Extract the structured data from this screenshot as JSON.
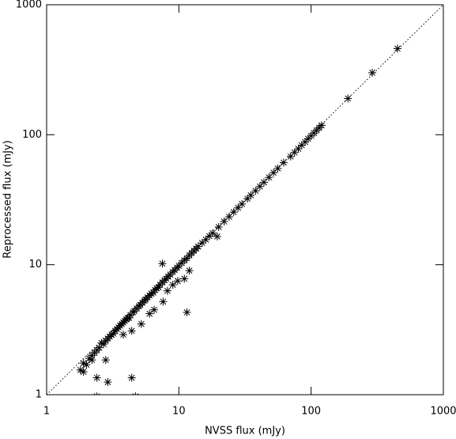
{
  "chart_data": {
    "type": "scatter",
    "xlabel": "NVSS flux (mJy)",
    "ylabel": "Reprocessed flux (mJy)",
    "xscale": "log",
    "yscale": "log",
    "diagonal": true,
    "color": "#000000",
    "xlim": [
      1,
      1000
    ],
    "ylim": [
      1,
      1000
    ],
    "xticks": [
      1,
      10,
      100,
      1000
    ],
    "yticks": [
      1,
      10,
      100,
      1000
    ],
    "x": [
      1.8,
      1.9,
      2.0,
      2.1,
      2.2,
      2.3,
      2.4,
      2.5,
      2.6,
      2.7,
      2.8,
      2.9,
      3.0,
      3.1,
      3.2,
      3.3,
      3.4,
      3.5,
      3.6,
      3.7,
      3.8,
      3.9,
      4.0,
      4.1,
      4.2,
      4.3,
      4.5,
      4.6,
      4.8,
      5.0,
      5.1,
      5.3,
      5.5,
      5.6,
      5.8,
      6.0,
      6.2,
      6.4,
      6.6,
      6.8,
      7.0,
      7.2,
      7.5,
      7.8,
      8.0,
      8.3,
      8.6,
      9.0,
      9.3,
      9.7,
      10,
      10.5,
      11,
      11.5,
      12,
      12.5,
      13,
      13.5,
      14,
      15,
      16,
      17,
      18,
      20,
      22,
      24,
      26,
      28,
      30,
      33,
      35,
      38,
      41,
      44,
      48,
      52,
      56,
      62,
      70,
      75,
      80,
      85,
      90,
      95,
      100,
      105,
      110,
      115,
      120,
      190,
      290,
      450,
      1.9,
      2.2,
      2.8,
      2.4,
      2.9,
      4.4,
      2.4,
      4.7,
      3.8,
      4.4,
      5.2,
      6.0,
      6.5,
      7.6,
      8.2,
      9.0,
      11.5,
      9.8,
      19.5,
      7.5,
      11,
      12
    ],
    "y": [
      1.55,
      1.75,
      1.7,
      1.9,
      2.0,
      2.1,
      2.2,
      2.3,
      2.5,
      2.45,
      2.6,
      2.7,
      2.8,
      2.9,
      2.95,
      3.1,
      3.2,
      3.3,
      3.4,
      3.5,
      3.6,
      3.7,
      3.8,
      3.9,
      3.9,
      4.1,
      4.3,
      4.4,
      4.6,
      4.8,
      4.9,
      5.1,
      5.3,
      5.4,
      5.6,
      5.8,
      6.0,
      6.1,
      6.4,
      6.6,
      6.7,
      7.0,
      7.3,
      7.6,
      7.8,
      8.1,
      8.4,
      8.8,
      9.1,
      9.5,
      9.8,
      10.3,
      10.8,
      11.2,
      11.8,
      12.3,
      12.8,
      13.3,
      13.8,
      14.7,
      15.6,
      16.6,
      17.5,
      19.5,
      21.5,
      23.4,
      25.4,
      27.4,
      29.3,
      32.2,
      34.2,
      37,
      40,
      43,
      47,
      51,
      55,
      61,
      68,
      73,
      78,
      83,
      88,
      93,
      98,
      103,
      108,
      113,
      118,
      190,
      300,
      460,
      1.5,
      1.85,
      1.85,
      1.35,
      1.25,
      1.35,
      0.97,
      0.97,
      2.9,
      3.1,
      3.5,
      4.2,
      4.5,
      5.2,
      6.3,
      7.0,
      4.3,
      7.5,
      16.5,
      10.2,
      7.8,
      9.0
    ]
  }
}
